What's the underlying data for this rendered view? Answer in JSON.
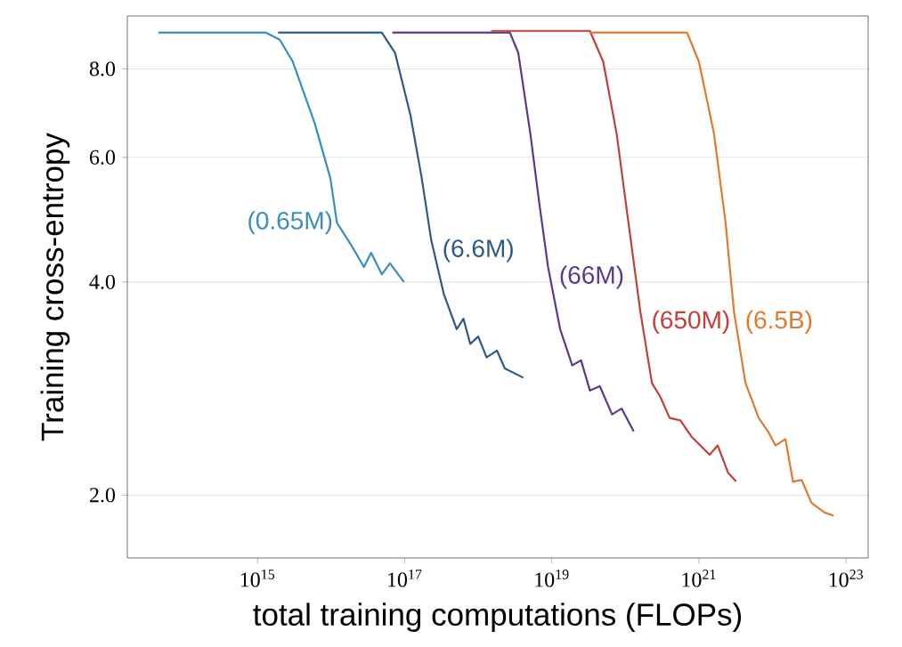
{
  "chart_data": {
    "type": "line",
    "xlabel": "total training computations (FLOPs)",
    "ylabel": "Training cross-entropy",
    "log": "xy",
    "grid": "y",
    "xlim": [
      17000000000000.0,
      2e+23
    ],
    "ylim": [
      1.63,
      9.5
    ],
    "xticks": [
      {
        "value": 1000000000000000.0,
        "label": "10$^{15}$"
      },
      {
        "value": 1e+17,
        "label": "10$^{17}$"
      },
      {
        "value": 1e+19,
        "label": "10$^{19}$"
      },
      {
        "value": 1e+21,
        "label": "10$^{21}$"
      },
      {
        "value": 1e+23,
        "label": "10$^{23}$"
      }
    ],
    "yticks": [
      {
        "value": 2,
        "label": "2.0"
      },
      {
        "value": 4,
        "label": "4.0"
      },
      {
        "value": 6,
        "label": "6.0"
      },
      {
        "value": 8,
        "label": "8.0"
      }
    ],
    "series": [
      {
        "name": "(0.65M)",
        "color": "#3a8fb7",
        "x": [
          45000000000000.0,
          1300000000000000.0,
          2000000000000000.0,
          3000000000000000.0,
          6000000000000000.0,
          9800000000000000.0,
          1.2e+16,
          1.9e+16,
          2.8e+16,
          3.5e+16,
          4.9e+16,
          6.3e+16,
          9.8e+16
        ],
        "values": [
          9.0,
          9.0,
          8.8,
          8.2,
          6.7,
          5.6,
          4.85,
          4.5,
          4.2,
          4.4,
          4.1,
          4.25,
          4.0
        ]
      },
      {
        "name": "(6.6M)",
        "color": "#2e5a8a",
        "x": [
          1900000000000000.0,
          4.9e+16,
          7.4e+16,
          1.2e+17,
          1.7e+17,
          2.3e+17,
          3.4e+17,
          5.1e+17,
          6.3e+17,
          7.8e+17,
          1e+18,
          1.3e+18,
          1.8e+18,
          2.3e+18,
          4.1e+18
        ],
        "values": [
          9.0,
          9.0,
          8.43,
          6.88,
          5.62,
          4.58,
          3.85,
          3.43,
          3.55,
          3.27,
          3.35,
          3.13,
          3.2,
          3.02,
          2.93
        ]
      },
      {
        "name": "(66M)",
        "color": "#5b3a8c",
        "x": [
          6.8e+16,
          2.7e+18,
          3.5e+18,
          5.1e+18,
          6.8e+18,
          8.9e+18,
          1.3e+19,
          1.9e+19,
          2.5e+19,
          3.3e+19,
          4.5e+19,
          6.6e+19,
          8.9e+19,
          1.3e+20
        ],
        "values": [
          9.0,
          9.0,
          8.43,
          6.49,
          5.15,
          4.2,
          3.43,
          3.05,
          3.1,
          2.81,
          2.85,
          2.6,
          2.65,
          2.46
        ]
      },
      {
        "name": "(650M)",
        "color": "#c0403a",
        "x": [
          1.5e+18,
          3.3e+19,
          5e+19,
          7.6e+19,
          1.1e+20,
          1.6e+20,
          2.3e+20,
          3e+20,
          4e+20,
          5.6e+20,
          7.9e+20,
          1.4e+21,
          1.8e+21,
          2.5e+21,
          3.2e+21
        ],
        "values": [
          9.05,
          9.05,
          8.19,
          6.49,
          4.86,
          3.63,
          2.88,
          2.75,
          2.57,
          2.55,
          2.42,
          2.28,
          2.35,
          2.15,
          2.09
        ]
      },
      {
        "name": "(6.5B)",
        "color": "#e07a2e",
        "x": [
          3.3e+19,
          6.9e+20,
          1e+21,
          1.6e+21,
          2.3e+21,
          3e+21,
          4.3e+21,
          6.5e+21,
          8.9e+21,
          1.1e+22,
          1.5e+22,
          1.9e+22,
          2.5e+22,
          3.4e+22,
          5.1e+22,
          6.8e+22
        ],
        "values": [
          9.0,
          9.0,
          8.19,
          6.49,
          4.86,
          3.63,
          2.88,
          2.57,
          2.45,
          2.35,
          2.4,
          2.09,
          2.1,
          1.95,
          1.89,
          1.87
        ]
      }
    ]
  }
}
